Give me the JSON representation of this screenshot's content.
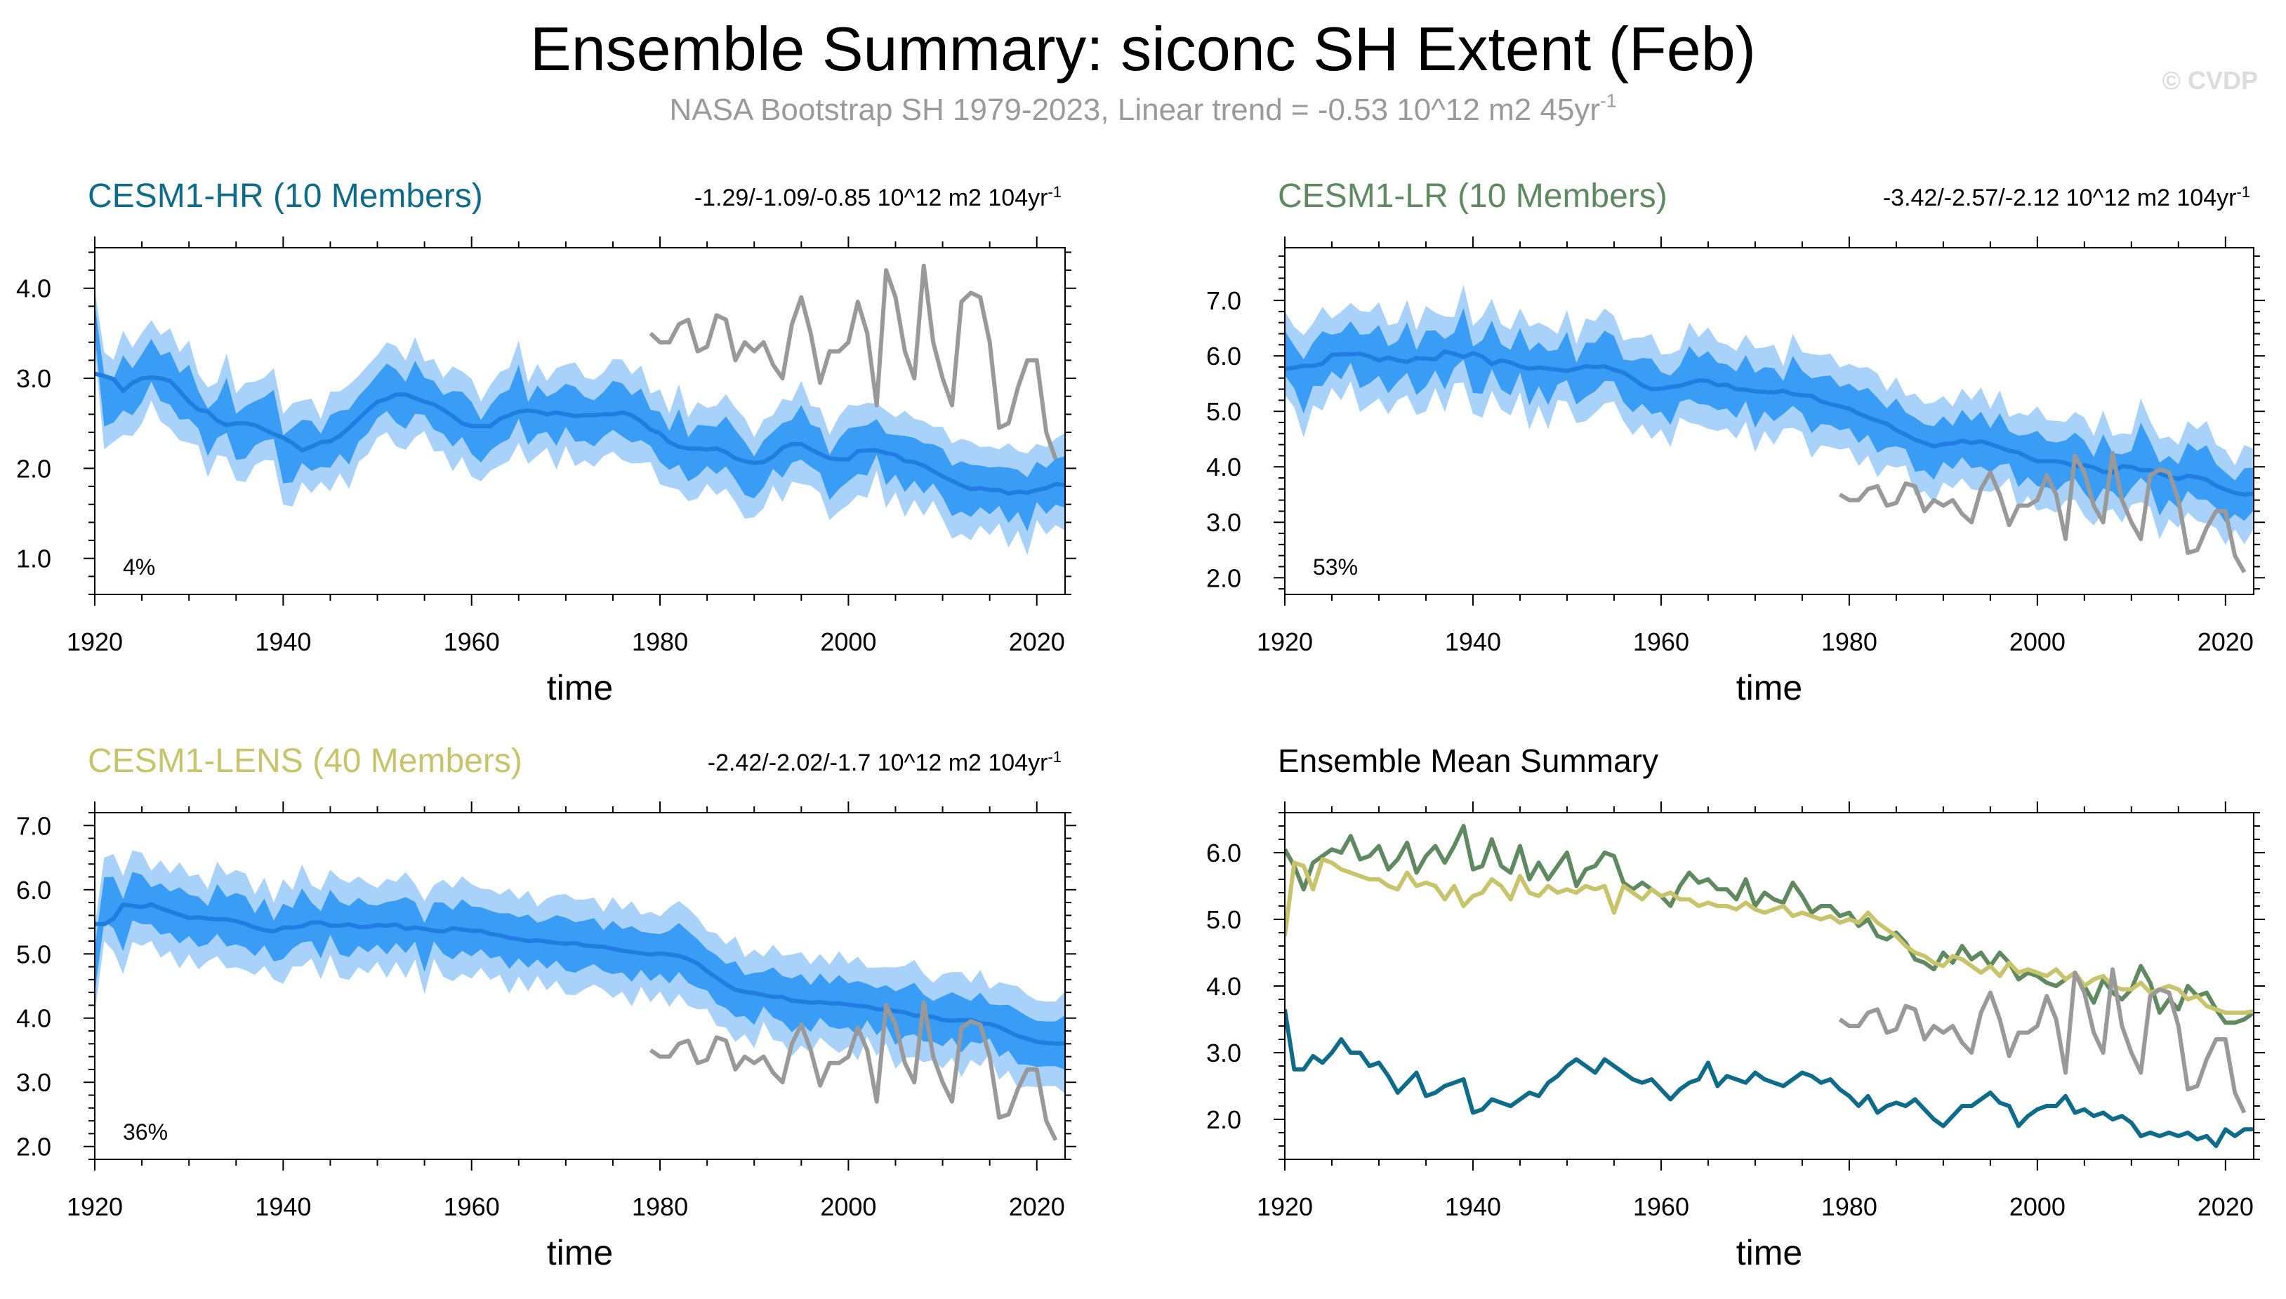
{
  "title": "Ensemble Summary: siconc SH Extent (Feb)",
  "subtitle": {
    "text": "NASA Bootstrap SH 1979-2023, Linear trend = -0.53 10^12 m2 45yr",
    "superscript": "-1"
  },
  "watermark": "© CVDP",
  "colors": {
    "obs": "#999999",
    "band_outer": "#a9d2fb",
    "band_inner": "#3a9df5",
    "mean": "#1f7ee0",
    "hr": "#0e6c8a",
    "lr": "#5f8a5f",
    "lens": "#c8c46c"
  },
  "chart_data": [
    {
      "id": "hr",
      "type": "line",
      "title": "CESM1-HR (10 Members)",
      "title_color": "#0e6c8a",
      "trend": {
        "text": "-1.29/-1.09/-0.85 10^12 m2 104yr",
        "superscript": "-1"
      },
      "percent": "4%",
      "xlabel": "time",
      "xlim": [
        1920,
        2023
      ],
      "ylim": [
        0.6,
        4.45
      ],
      "xticks": [
        "1920",
        "1940",
        "1960",
        "1980",
        "2000",
        "2020"
      ],
      "yticks": [
        "1.0",
        "2.0",
        "3.0",
        "4.0"
      ],
      "series": [
        {
          "role": "mean",
          "x_start": 1920,
          "values": [
            3.65,
            2.75,
            2.75,
            2.95,
            2.85,
            3.0,
            3.2,
            3.0,
            3.0,
            2.8,
            2.85,
            2.65,
            2.4,
            2.55,
            2.7,
            2.35,
            2.4,
            2.5,
            2.55,
            2.6,
            2.1,
            2.15,
            2.3,
            2.25,
            2.2,
            2.3,
            2.4,
            2.35,
            2.55,
            2.65,
            2.8,
            2.9,
            2.8,
            2.7,
            2.9,
            2.8,
            2.7,
            2.6,
            2.55,
            2.6,
            2.45,
            2.3,
            2.45,
            2.55,
            2.6,
            2.85,
            2.5,
            2.65,
            2.6,
            2.55,
            2.7,
            2.6,
            2.55,
            2.5,
            2.6,
            2.7,
            2.65,
            2.55,
            2.6,
            2.45,
            2.35,
            2.2,
            2.35,
            2.1,
            2.2,
            2.25,
            2.2,
            2.3,
            2.15,
            2.0,
            1.9,
            2.05,
            2.2,
            2.2,
            2.3,
            2.4,
            2.25,
            2.2,
            1.9,
            2.05,
            2.15,
            2.2,
            2.2,
            2.35,
            2.1,
            2.15,
            2.05,
            2.1,
            2.0,
            2.05,
            1.95,
            1.75,
            1.8,
            1.75,
            1.8,
            1.75,
            1.8,
            1.7,
            1.75,
            1.6,
            1.85,
            1.75,
            1.85,
            1.85
          ]
        },
        {
          "role": "obs",
          "x_start": 1979,
          "values": [
            3.5,
            3.4,
            3.4,
            3.6,
            3.65,
            3.3,
            3.35,
            3.7,
            3.65,
            3.2,
            3.4,
            3.3,
            3.4,
            3.15,
            3.0,
            3.6,
            3.9,
            3.5,
            2.95,
            3.3,
            3.3,
            3.4,
            3.85,
            3.5,
            2.7,
            4.2,
            3.9,
            3.3,
            3.0,
            4.25,
            3.4,
            3.0,
            2.7,
            3.85,
            3.95,
            3.9,
            3.4,
            2.45,
            2.5,
            2.9,
            3.2,
            3.2,
            2.4,
            2.1
          ]
        }
      ]
    },
    {
      "id": "lr",
      "type": "line",
      "title": "CESM1-LR (10 Members)",
      "title_color": "#5f8a5f",
      "trend": {
        "text": "-3.42/-2.57/-2.12 10^12 m2 104yr",
        "superscript": "-1"
      },
      "percent": "53%",
      "xlabel": "time",
      "xlim": [
        1920,
        2023
      ],
      "ylim": [
        1.7,
        7.95
      ],
      "xticks": [
        "1920",
        "1940",
        "1960",
        "1980",
        "2000",
        "2020"
      ],
      "yticks": [
        "2.0",
        "3.0",
        "4.0",
        "5.0",
        "6.0",
        "7.0"
      ],
      "series": [
        {
          "role": "mean",
          "x_start": 1920,
          "values": [
            6.05,
            5.8,
            5.45,
            5.85,
            5.95,
            6.05,
            6.0,
            6.25,
            5.9,
            5.95,
            6.1,
            5.75,
            5.9,
            6.15,
            5.7,
            5.95,
            6.1,
            5.85,
            6.1,
            6.4,
            5.75,
            5.8,
            6.2,
            5.8,
            5.7,
            6.1,
            5.6,
            5.85,
            5.6,
            5.8,
            6.0,
            5.5,
            5.75,
            5.8,
            6.0,
            5.95,
            5.55,
            5.45,
            5.55,
            5.45,
            5.35,
            5.2,
            5.5,
            5.7,
            5.55,
            5.6,
            5.45,
            5.45,
            5.3,
            5.6,
            5.2,
            5.4,
            5.3,
            5.25,
            5.55,
            5.35,
            5.1,
            5.2,
            5.2,
            5.05,
            5.1,
            4.9,
            5.0,
            4.75,
            4.7,
            4.8,
            4.65,
            4.4,
            4.35,
            4.25,
            4.5,
            4.35,
            4.6,
            4.4,
            4.5,
            4.3,
            4.5,
            4.35,
            4.1,
            4.2,
            4.15,
            4.05,
            4.0,
            4.1,
            4.2,
            4.0,
            3.75,
            4.1,
            3.9,
            3.8,
            3.95,
            4.3,
            4.05,
            3.6,
            3.8,
            3.65,
            4.0,
            3.85,
            3.9,
            3.65,
            3.45,
            3.45,
            3.5,
            3.6
          ]
        },
        {
          "role": "obs",
          "x_start": 1979,
          "values": [
            3.5,
            3.4,
            3.4,
            3.6,
            3.65,
            3.3,
            3.35,
            3.7,
            3.65,
            3.2,
            3.4,
            3.3,
            3.4,
            3.15,
            3.0,
            3.6,
            3.9,
            3.5,
            2.95,
            3.3,
            3.3,
            3.4,
            3.85,
            3.5,
            2.7,
            4.2,
            3.9,
            3.3,
            3.0,
            4.25,
            3.4,
            3.0,
            2.7,
            3.85,
            3.95,
            3.9,
            3.4,
            2.45,
            2.5,
            2.9,
            3.2,
            3.2,
            2.4,
            2.1
          ]
        }
      ]
    },
    {
      "id": "lens",
      "type": "line",
      "title": "CESM1-LENS (40 Members)",
      "title_color": "#c8c46c",
      "trend": {
        "text": "-2.42/-2.02/-1.7 10^12 m2 104yr",
        "superscript": "-1"
      },
      "percent": "36%",
      "xlabel": "time",
      "xlim": [
        1920,
        2023
      ],
      "ylim": [
        1.8,
        7.2
      ],
      "xticks": [
        "1920",
        "1940",
        "1960",
        "1980",
        "2000",
        "2020"
      ],
      "yticks": [
        "2.0",
        "3.0",
        "4.0",
        "5.0",
        "6.0",
        "7.0"
      ],
      "series": [
        {
          "role": "mean",
          "x_start": 1920,
          "values": [
            4.75,
            5.85,
            5.8,
            5.45,
            5.9,
            5.85,
            5.75,
            5.7,
            5.65,
            5.6,
            5.6,
            5.5,
            5.45,
            5.7,
            5.5,
            5.55,
            5.5,
            5.3,
            5.5,
            5.2,
            5.35,
            5.4,
            5.6,
            5.5,
            5.3,
            5.65,
            5.4,
            5.35,
            5.5,
            5.4,
            5.45,
            5.4,
            5.5,
            5.45,
            5.5,
            5.1,
            5.5,
            5.4,
            5.3,
            5.45,
            5.35,
            5.4,
            5.3,
            5.3,
            5.2,
            5.25,
            5.2,
            5.2,
            5.15,
            5.25,
            5.15,
            5.1,
            5.15,
            5.2,
            5.05,
            5.1,
            5.05,
            5.0,
            5.05,
            4.95,
            5.0,
            4.95,
            5.1,
            4.95,
            4.85,
            4.75,
            4.6,
            4.5,
            4.45,
            4.35,
            4.3,
            4.45,
            4.4,
            4.3,
            4.2,
            4.3,
            4.15,
            4.35,
            4.2,
            4.25,
            4.2,
            4.15,
            4.25,
            4.1,
            4.2,
            4.0,
            4.1,
            4.15,
            4.0,
            3.95,
            3.95,
            4.05,
            3.9,
            3.95,
            4.0,
            3.95,
            3.8,
            3.85,
            3.7,
            3.65,
            3.6,
            3.6,
            3.6,
            3.62
          ]
        },
        {
          "role": "obs",
          "x_start": 1979,
          "values": [
            3.5,
            3.4,
            3.4,
            3.6,
            3.65,
            3.3,
            3.35,
            3.7,
            3.65,
            3.2,
            3.4,
            3.3,
            3.4,
            3.15,
            3.0,
            3.6,
            3.9,
            3.5,
            2.95,
            3.3,
            3.3,
            3.4,
            3.85,
            3.5,
            2.7,
            4.2,
            3.9,
            3.3,
            3.0,
            4.25,
            3.4,
            3.0,
            2.7,
            3.85,
            3.95,
            3.9,
            3.4,
            2.45,
            2.5,
            2.9,
            3.2,
            3.2,
            2.4,
            2.1
          ]
        }
      ]
    },
    {
      "id": "summary",
      "type": "line",
      "title": "Ensemble Mean Summary",
      "title_color": "#000000",
      "xlabel": "time",
      "xlim": [
        1920,
        2023
      ],
      "ylim": [
        1.4,
        6.6
      ],
      "xticks": [
        "1920",
        "1940",
        "1960",
        "1980",
        "2000",
        "2020"
      ],
      "yticks": [
        "2.0",
        "3.0",
        "4.0",
        "5.0",
        "6.0"
      ],
      "series": [
        {
          "role": "lr",
          "x_start": 1920,
          "values": [
            6.05,
            5.8,
            5.45,
            5.85,
            5.95,
            6.05,
            6.0,
            6.25,
            5.9,
            5.95,
            6.1,
            5.75,
            5.9,
            6.15,
            5.7,
            5.95,
            6.1,
            5.85,
            6.1,
            6.4,
            5.75,
            5.8,
            6.2,
            5.8,
            5.7,
            6.1,
            5.6,
            5.85,
            5.6,
            5.8,
            6.0,
            5.5,
            5.75,
            5.8,
            6.0,
            5.95,
            5.55,
            5.45,
            5.55,
            5.45,
            5.35,
            5.2,
            5.5,
            5.7,
            5.55,
            5.6,
            5.45,
            5.45,
            5.3,
            5.6,
            5.2,
            5.4,
            5.3,
            5.25,
            5.55,
            5.35,
            5.1,
            5.2,
            5.2,
            5.05,
            5.1,
            4.9,
            5.0,
            4.75,
            4.7,
            4.8,
            4.65,
            4.4,
            4.35,
            4.25,
            4.5,
            4.35,
            4.6,
            4.4,
            4.5,
            4.3,
            4.5,
            4.35,
            4.1,
            4.2,
            4.15,
            4.05,
            4.0,
            4.1,
            4.2,
            4.0,
            3.75,
            4.1,
            3.9,
            3.8,
            3.95,
            4.3,
            4.05,
            3.6,
            3.8,
            3.65,
            4.0,
            3.85,
            3.9,
            3.65,
            3.45,
            3.45,
            3.5,
            3.6
          ]
        },
        {
          "role": "lens",
          "x_start": 1920,
          "values": [
            4.75,
            5.85,
            5.8,
            5.45,
            5.9,
            5.85,
            5.75,
            5.7,
            5.65,
            5.6,
            5.6,
            5.5,
            5.45,
            5.7,
            5.5,
            5.55,
            5.5,
            5.3,
            5.5,
            5.2,
            5.35,
            5.4,
            5.6,
            5.5,
            5.3,
            5.65,
            5.4,
            5.35,
            5.5,
            5.4,
            5.45,
            5.4,
            5.5,
            5.45,
            5.5,
            5.1,
            5.5,
            5.4,
            5.3,
            5.45,
            5.35,
            5.4,
            5.3,
            5.3,
            5.2,
            5.25,
            5.2,
            5.2,
            5.15,
            5.25,
            5.15,
            5.1,
            5.15,
            5.2,
            5.05,
            5.1,
            5.05,
            5.0,
            5.05,
            4.95,
            5.0,
            4.95,
            5.1,
            4.95,
            4.85,
            4.75,
            4.6,
            4.5,
            4.45,
            4.35,
            4.3,
            4.45,
            4.4,
            4.3,
            4.2,
            4.3,
            4.15,
            4.35,
            4.2,
            4.25,
            4.2,
            4.15,
            4.25,
            4.1,
            4.2,
            4.0,
            4.1,
            4.15,
            4.0,
            3.95,
            3.95,
            4.05,
            3.9,
            3.95,
            4.0,
            3.95,
            3.8,
            3.85,
            3.7,
            3.65,
            3.6,
            3.6,
            3.6,
            3.62
          ]
        },
        {
          "role": "hr",
          "x_start": 1920,
          "values": [
            3.65,
            2.75,
            2.75,
            2.95,
            2.85,
            3.0,
            3.2,
            3.0,
            3.0,
            2.8,
            2.85,
            2.65,
            2.4,
            2.55,
            2.7,
            2.35,
            2.4,
            2.5,
            2.55,
            2.6,
            2.1,
            2.15,
            2.3,
            2.25,
            2.2,
            2.3,
            2.4,
            2.35,
            2.55,
            2.65,
            2.8,
            2.9,
            2.8,
            2.7,
            2.9,
            2.8,
            2.7,
            2.6,
            2.55,
            2.6,
            2.45,
            2.3,
            2.45,
            2.55,
            2.6,
            2.85,
            2.5,
            2.65,
            2.6,
            2.55,
            2.7,
            2.6,
            2.55,
            2.5,
            2.6,
            2.7,
            2.65,
            2.55,
            2.6,
            2.45,
            2.35,
            2.2,
            2.35,
            2.1,
            2.2,
            2.25,
            2.2,
            2.3,
            2.15,
            2.0,
            1.9,
            2.05,
            2.2,
            2.2,
            2.3,
            2.4,
            2.25,
            2.2,
            1.9,
            2.05,
            2.15,
            2.2,
            2.2,
            2.35,
            2.1,
            2.15,
            2.05,
            2.1,
            2.0,
            2.05,
            1.95,
            1.75,
            1.8,
            1.75,
            1.8,
            1.75,
            1.8,
            1.7,
            1.75,
            1.6,
            1.85,
            1.75,
            1.85,
            1.85
          ]
        },
        {
          "role": "obs",
          "x_start": 1979,
          "values": [
            3.5,
            3.4,
            3.4,
            3.6,
            3.65,
            3.3,
            3.35,
            3.7,
            3.65,
            3.2,
            3.4,
            3.3,
            3.4,
            3.15,
            3.0,
            3.6,
            3.9,
            3.5,
            2.95,
            3.3,
            3.3,
            3.4,
            3.85,
            3.5,
            2.7,
            4.2,
            3.9,
            3.3,
            3.0,
            4.25,
            3.4,
            3.0,
            2.7,
            3.85,
            3.95,
            3.9,
            3.4,
            2.45,
            2.5,
            2.9,
            3.2,
            3.2,
            2.4,
            2.1
          ]
        }
      ]
    }
  ]
}
